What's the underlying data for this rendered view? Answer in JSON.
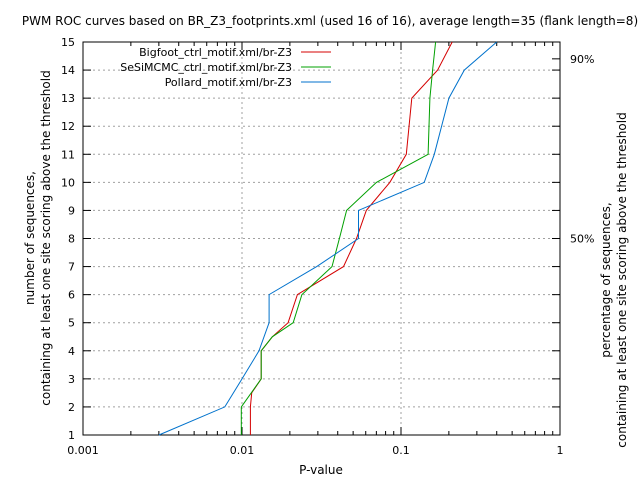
{
  "chart_data": {
    "type": "line",
    "title": "PWM ROC curves based on BR_Z3_footprints.xml (used 16 of 16), average length=35 (flank length=8)",
    "xlabel": "P-value",
    "ylabel_line1": "number of sequences,",
    "ylabel_line2": "containing at least one site scoring above the threshold",
    "y2label_line1": "percentage of sequences,",
    "y2label_line2": "containing at least one site scoring above the threshold",
    "x_scale": "log",
    "xlim": [
      0.001,
      1
    ],
    "ylim": [
      1,
      15
    ],
    "x_ticks": [
      {
        "value": 0.001,
        "label": "0.001"
      },
      {
        "value": 0.01,
        "label": "0.01"
      },
      {
        "value": 0.1,
        "label": "0.1"
      },
      {
        "value": 1,
        "label": "1"
      }
    ],
    "y_ticks": [
      1,
      2,
      3,
      4,
      5,
      6,
      7,
      8,
      9,
      10,
      11,
      12,
      13,
      14,
      15
    ],
    "y2_ticks": [
      {
        "value": 8,
        "label": "50%"
      },
      {
        "value": 14.4,
        "label": "90%"
      }
    ],
    "grid": true,
    "legend_position": "top-left",
    "series": [
      {
        "name": "Bigfoot_ctrl_motif.xml/br-Z3",
        "color": "#d40000",
        "points": [
          [
            0.0113,
            1
          ],
          [
            0.0113,
            2
          ],
          [
            0.0115,
            2.5
          ],
          [
            0.0132,
            3
          ],
          [
            0.0132,
            4
          ],
          [
            0.0155,
            4.5
          ],
          [
            0.0195,
            5
          ],
          [
            0.0223,
            6
          ],
          [
            0.0435,
            7
          ],
          [
            0.0525,
            8
          ],
          [
            0.0605,
            9
          ],
          [
            0.085,
            10
          ],
          [
            0.108,
            11
          ],
          [
            0.117,
            13
          ],
          [
            0.17,
            14
          ],
          [
            0.21,
            15
          ]
        ]
      },
      {
        "name": "SeSiMCMC_ctrl_motif.xml/br-Z3",
        "color": "#00a000",
        "points": [
          [
            0.0099,
            1
          ],
          [
            0.0099,
            2
          ],
          [
            0.0132,
            3
          ],
          [
            0.0132,
            4
          ],
          [
            0.0155,
            4.5
          ],
          [
            0.021,
            5
          ],
          [
            0.0238,
            6
          ],
          [
            0.0368,
            7
          ],
          [
            0.041,
            8
          ],
          [
            0.0455,
            9
          ],
          [
            0.07,
            10
          ],
          [
            0.148,
            11
          ],
          [
            0.152,
            13
          ],
          [
            0.158,
            14
          ],
          [
            0.165,
            15.2
          ]
        ]
      },
      {
        "name": "Pollard_motif.xml/br-Z3",
        "color": "#0072cc",
        "points": [
          [
            0.003,
            1
          ],
          [
            0.0078,
            2
          ],
          [
            0.01,
            3
          ],
          [
            0.0128,
            4
          ],
          [
            0.0148,
            5
          ],
          [
            0.0148,
            6
          ],
          [
            0.0295,
            7
          ],
          [
            0.054,
            8
          ],
          [
            0.054,
            9
          ],
          [
            0.14,
            10
          ],
          [
            0.162,
            11
          ],
          [
            0.2,
            13
          ],
          [
            0.25,
            14
          ],
          [
            0.4,
            15
          ]
        ]
      }
    ]
  }
}
